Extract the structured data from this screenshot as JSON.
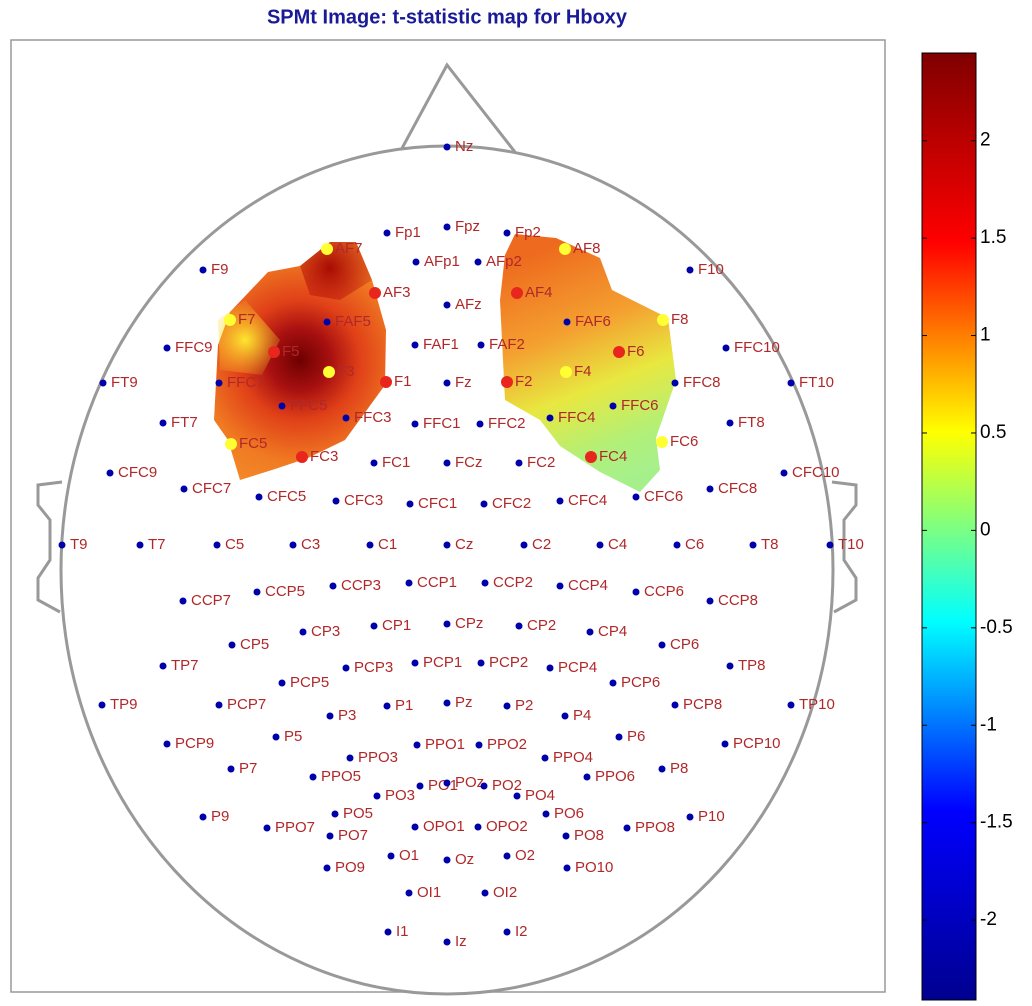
{
  "chart_data": {
    "type": "topomap",
    "title": "SPMt Image: t-statistic map  for Hboxy",
    "clim": [
      -2.41,
      2.45
    ],
    "cticks": [
      2,
      1.5,
      1,
      0.5,
      0,
      -0.5,
      -1,
      -1.5,
      -2
    ],
    "colormap": [
      "#800000",
      "#ff0000",
      "#ffff00",
      "#00ffff",
      "#0000ff",
      "#00008f"
    ],
    "electrodes": [
      {
        "label": "Nz",
        "color": "#0000aa"
      },
      {
        "label": "Fp1",
        "color": "#0000aa"
      },
      {
        "label": "Fpz",
        "color": "#0000aa"
      },
      {
        "label": "Fp2",
        "color": "#0000aa"
      },
      {
        "label": "AF7",
        "color": "#ffff33"
      },
      {
        "label": "AF8",
        "color": "#ffff33"
      },
      {
        "label": "F9",
        "color": "#0000aa"
      },
      {
        "label": "AFp1",
        "color": "#0000aa"
      },
      {
        "label": "AFp2",
        "color": "#0000aa"
      },
      {
        "label": "F10",
        "color": "#0000aa"
      },
      {
        "label": "AF3",
        "color": "#e8261e"
      },
      {
        "label": "AFz",
        "color": "#0000aa"
      },
      {
        "label": "AF4",
        "color": "#e8261e"
      },
      {
        "label": "F7",
        "color": "#ffff33"
      },
      {
        "label": "FAF5",
        "color": "#0000aa"
      },
      {
        "label": "FAF6",
        "color": "#0000aa"
      },
      {
        "label": "F8",
        "color": "#ffff33"
      },
      {
        "label": "FFC9",
        "color": "#0000aa"
      },
      {
        "label": "F5",
        "color": "#e8261e"
      },
      {
        "label": "FAF1",
        "color": "#0000aa"
      },
      {
        "label": "FAF2",
        "color": "#0000aa"
      },
      {
        "label": "F6",
        "color": "#e8261e"
      },
      {
        "label": "FFC10",
        "color": "#0000aa"
      },
      {
        "label": "FT9",
        "color": "#0000aa"
      },
      {
        "label": "FFC7",
        "color": "#0000aa"
      },
      {
        "label": "F3",
        "color": "#ffff33"
      },
      {
        "label": "F1",
        "color": "#e8261e"
      },
      {
        "label": "Fz",
        "color": "#0000aa"
      },
      {
        "label": "F2",
        "color": "#e8261e"
      },
      {
        "label": "F4",
        "color": "#ffff33"
      },
      {
        "label": "FFC8",
        "color": "#0000aa"
      },
      {
        "label": "FT10",
        "color": "#0000aa"
      },
      {
        "label": "FFC5",
        "color": "#0000aa"
      },
      {
        "label": "FFC3",
        "color": "#0000aa"
      },
      {
        "label": "FFC1",
        "color": "#0000aa"
      },
      {
        "label": "FFC2",
        "color": "#0000aa"
      },
      {
        "label": "FFC4",
        "color": "#0000aa"
      },
      {
        "label": "FFC6",
        "color": "#0000aa"
      },
      {
        "label": "FT7",
        "color": "#0000aa"
      },
      {
        "label": "FT8",
        "color": "#0000aa"
      },
      {
        "label": "FC5",
        "color": "#ffff33"
      },
      {
        "label": "FC6",
        "color": "#ffff33"
      },
      {
        "label": "FC3",
        "color": "#e8261e"
      },
      {
        "label": "FC1",
        "color": "#0000aa"
      },
      {
        "label": "FCz",
        "color": "#0000aa"
      },
      {
        "label": "FC2",
        "color": "#0000aa"
      },
      {
        "label": "FC4",
        "color": "#e8261e"
      },
      {
        "label": "CFC9",
        "color": "#0000aa"
      },
      {
        "label": "CFC10",
        "color": "#0000aa"
      },
      {
        "label": "CFC7",
        "color": "#0000aa"
      },
      {
        "label": "CFC8",
        "color": "#0000aa"
      },
      {
        "label": "CFC5",
        "color": "#0000aa"
      },
      {
        "label": "CFC3",
        "color": "#0000aa"
      },
      {
        "label": "CFC1",
        "color": "#0000aa"
      },
      {
        "label": "CFC2",
        "color": "#0000aa"
      },
      {
        "label": "CFC4",
        "color": "#0000aa"
      },
      {
        "label": "CFC6",
        "color": "#0000aa"
      },
      {
        "label": "T9",
        "color": "#0000aa"
      },
      {
        "label": "T7",
        "color": "#0000aa"
      },
      {
        "label": "C5",
        "color": "#0000aa"
      },
      {
        "label": "C3",
        "color": "#0000aa"
      },
      {
        "label": "C1",
        "color": "#0000aa"
      },
      {
        "label": "Cz",
        "color": "#0000aa"
      },
      {
        "label": "C2",
        "color": "#0000aa"
      },
      {
        "label": "C4",
        "color": "#0000aa"
      },
      {
        "label": "C6",
        "color": "#0000aa"
      },
      {
        "label": "T8",
        "color": "#0000aa"
      },
      {
        "label": "T10",
        "color": "#0000aa"
      },
      {
        "label": "CCP7",
        "color": "#0000aa"
      },
      {
        "label": "CCP5",
        "color": "#0000aa"
      },
      {
        "label": "CCP3",
        "color": "#0000aa"
      },
      {
        "label": "CCP1",
        "color": "#0000aa"
      },
      {
        "label": "CCP2",
        "color": "#0000aa"
      },
      {
        "label": "CCP4",
        "color": "#0000aa"
      },
      {
        "label": "CCP6",
        "color": "#0000aa"
      },
      {
        "label": "CCP8",
        "color": "#0000aa"
      },
      {
        "label": "CP5",
        "color": "#0000aa"
      },
      {
        "label": "CP3",
        "color": "#0000aa"
      },
      {
        "label": "CP1",
        "color": "#0000aa"
      },
      {
        "label": "CPz",
        "color": "#0000aa"
      },
      {
        "label": "CP2",
        "color": "#0000aa"
      },
      {
        "label": "CP4",
        "color": "#0000aa"
      },
      {
        "label": "CP6",
        "color": "#0000aa"
      },
      {
        "label": "TP7",
        "color": "#0000aa"
      },
      {
        "label": "TP8",
        "color": "#0000aa"
      },
      {
        "label": "PCP3",
        "color": "#0000aa"
      },
      {
        "label": "PCP1",
        "color": "#0000aa"
      },
      {
        "label": "PCP2",
        "color": "#0000aa"
      },
      {
        "label": "PCP4",
        "color": "#0000aa"
      },
      {
        "label": "PCP5",
        "color": "#0000aa"
      },
      {
        "label": "PCP6",
        "color": "#0000aa"
      },
      {
        "label": "TP9",
        "color": "#0000aa"
      },
      {
        "label": "PCP7",
        "color": "#0000aa"
      },
      {
        "label": "P3",
        "color": "#0000aa"
      },
      {
        "label": "P1",
        "color": "#0000aa"
      },
      {
        "label": "Pz",
        "color": "#0000aa"
      },
      {
        "label": "P2",
        "color": "#0000aa"
      },
      {
        "label": "P4",
        "color": "#0000aa"
      },
      {
        "label": "PCP8",
        "color": "#0000aa"
      },
      {
        "label": "TP10",
        "color": "#0000aa"
      },
      {
        "label": "PCP9",
        "color": "#0000aa"
      },
      {
        "label": "P5",
        "color": "#0000aa"
      },
      {
        "label": "P6",
        "color": "#0000aa"
      },
      {
        "label": "PCP10",
        "color": "#0000aa"
      },
      {
        "label": "PPO3",
        "color": "#0000aa"
      },
      {
        "label": "PPO1",
        "color": "#0000aa"
      },
      {
        "label": "PPO2",
        "color": "#0000aa"
      },
      {
        "label": "PPO4",
        "color": "#0000aa"
      },
      {
        "label": "P7",
        "color": "#0000aa"
      },
      {
        "label": "P8",
        "color": "#0000aa"
      },
      {
        "label": "PPO5",
        "color": "#0000aa"
      },
      {
        "label": "PPO6",
        "color": "#0000aa"
      },
      {
        "label": "PO3",
        "color": "#0000aa"
      },
      {
        "label": "PO1",
        "color": "#0000aa"
      },
      {
        "label": "POz",
        "color": "#0000aa"
      },
      {
        "label": "PO2",
        "color": "#0000aa"
      },
      {
        "label": "PO4",
        "color": "#0000aa"
      },
      {
        "label": "P9",
        "color": "#0000aa"
      },
      {
        "label": "PO5",
        "color": "#0000aa"
      },
      {
        "label": "PO6",
        "color": "#0000aa"
      },
      {
        "label": "P10",
        "color": "#0000aa"
      },
      {
        "label": "PPO7",
        "color": "#0000aa"
      },
      {
        "label": "PO7",
        "color": "#0000aa"
      },
      {
        "label": "OPO1",
        "color": "#0000aa"
      },
      {
        "label": "OPO2",
        "color": "#0000aa"
      },
      {
        "label": "PO8",
        "color": "#0000aa"
      },
      {
        "label": "PPO8",
        "color": "#0000aa"
      },
      {
        "label": "PO9",
        "color": "#0000aa"
      },
      {
        "label": "O1",
        "color": "#0000aa"
      },
      {
        "label": "Oz",
        "color": "#0000aa"
      },
      {
        "label": "O2",
        "color": "#0000aa"
      },
      {
        "label": "PO10",
        "color": "#0000aa"
      },
      {
        "label": "OI1",
        "color": "#0000aa"
      },
      {
        "label": "OI2",
        "color": "#0000aa"
      },
      {
        "label": "I1",
        "color": "#0000aa"
      },
      {
        "label": "Iz",
        "color": "#0000aa"
      },
      {
        "label": "I2",
        "color": "#0000aa"
      }
    ]
  }
}
